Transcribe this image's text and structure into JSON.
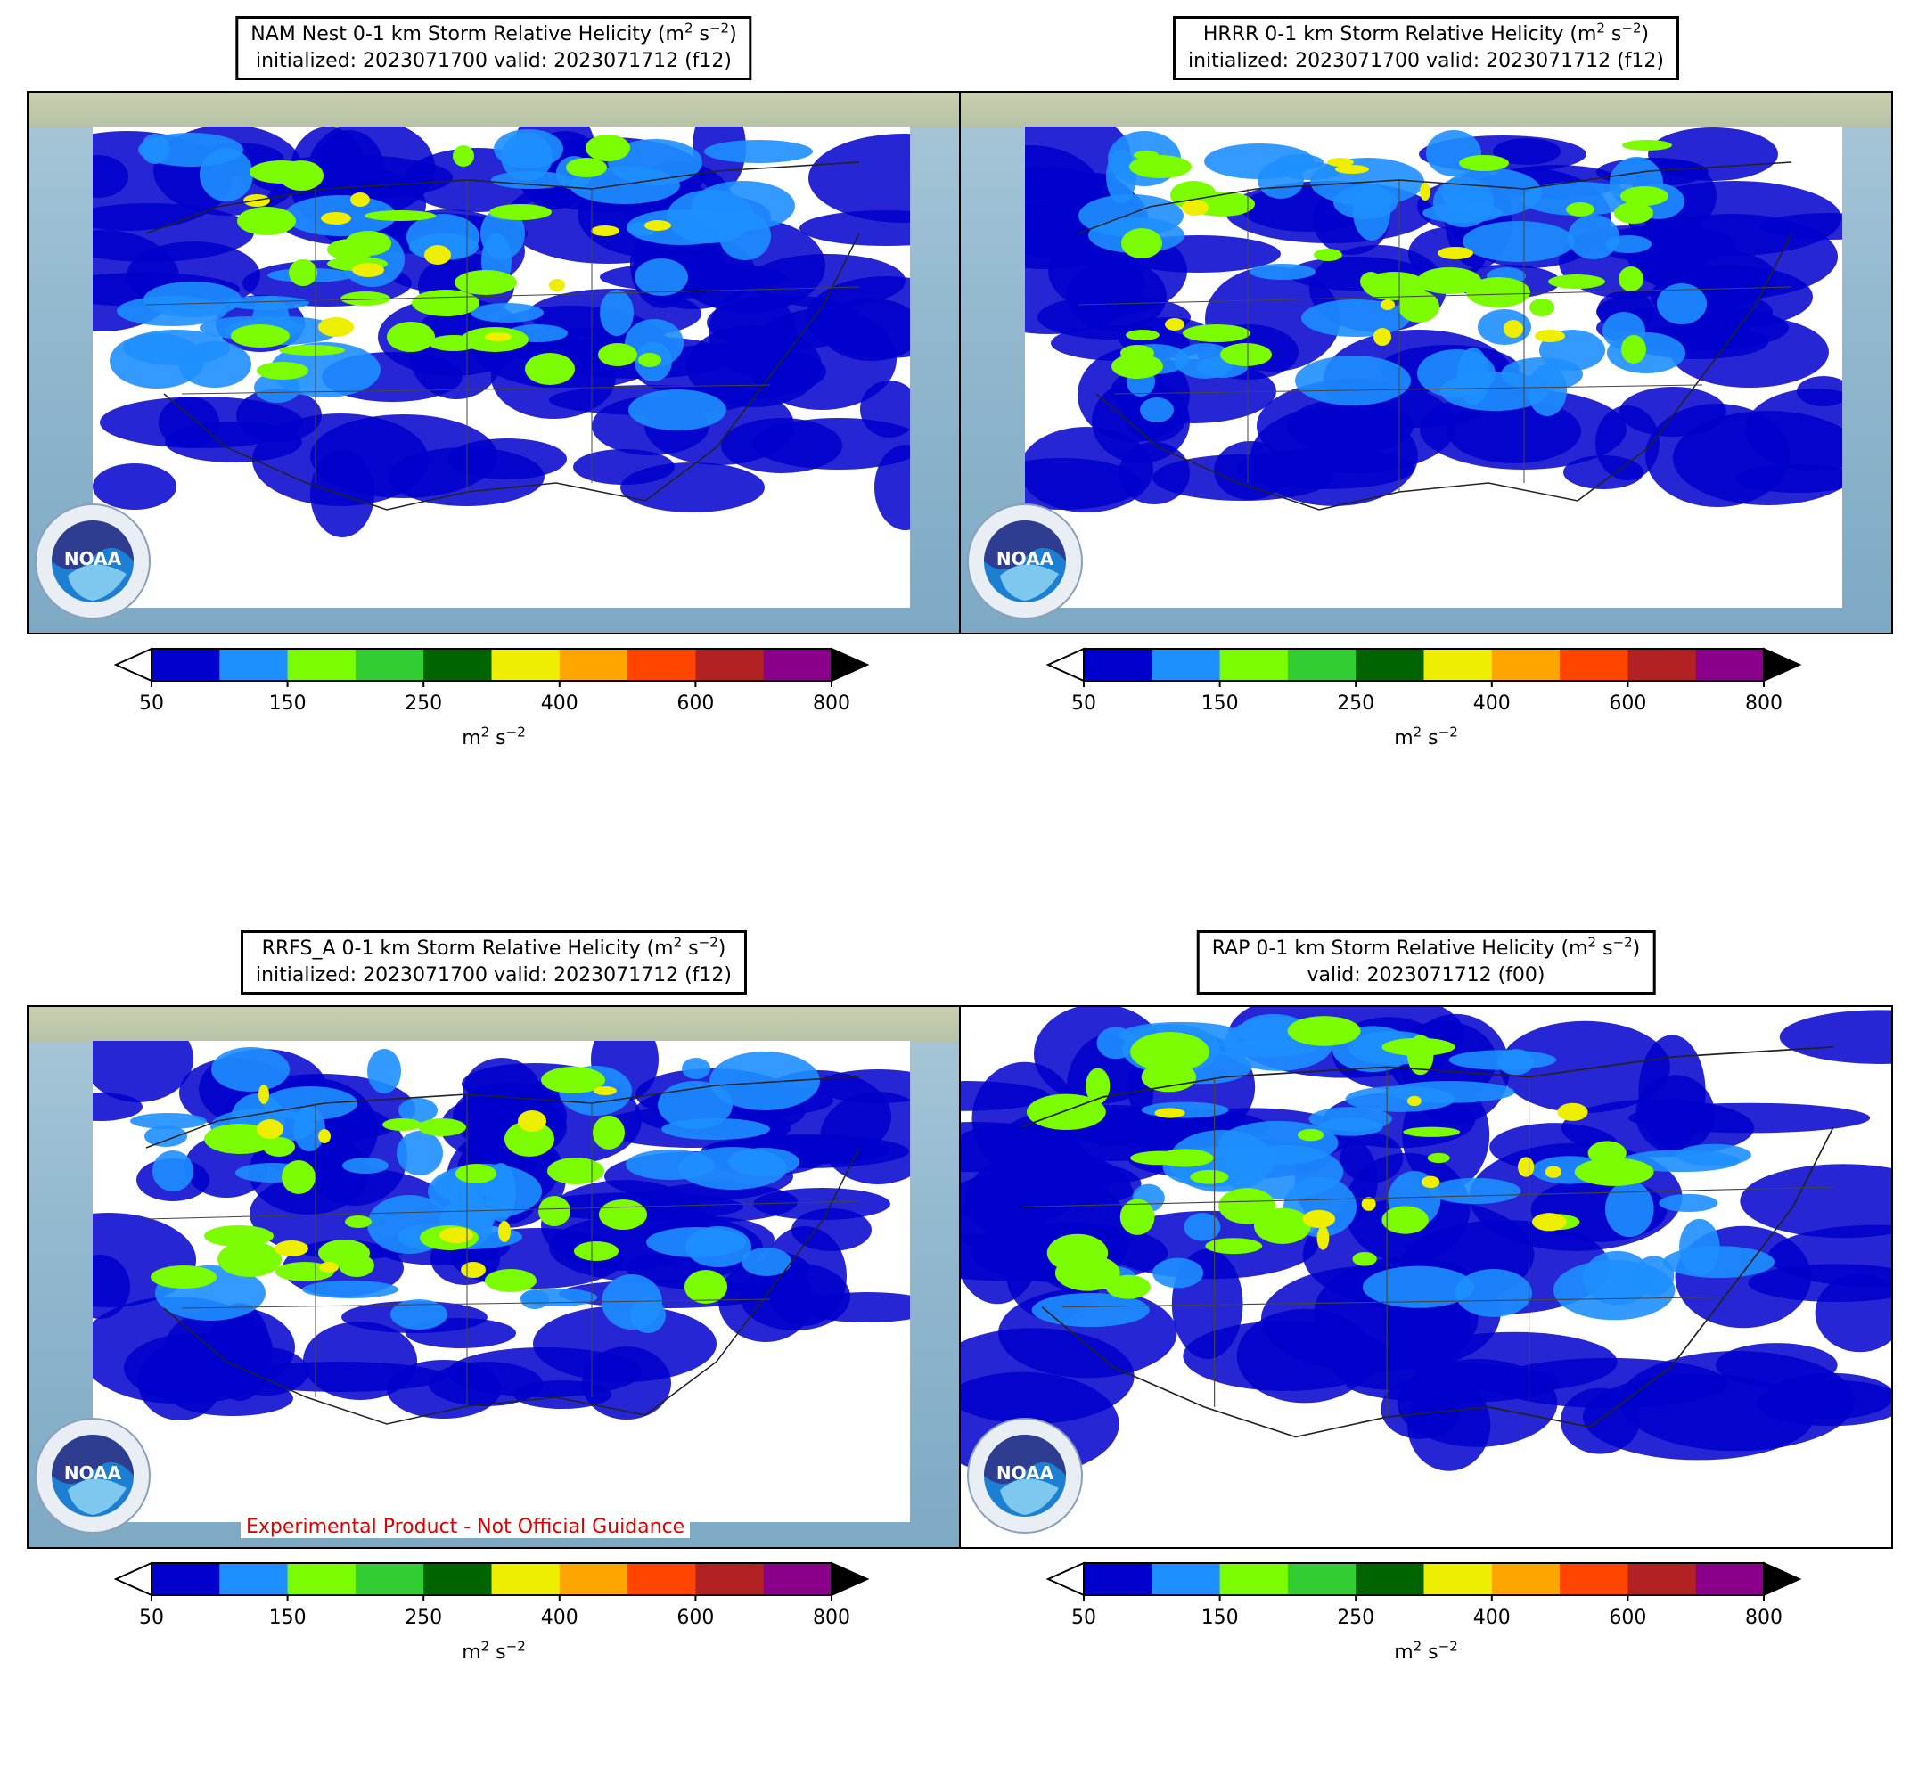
{
  "panels": [
    {
      "id": "nam",
      "title_line1_prefix": "NAM Nest 0-1 km Storm Relative Helicity (m",
      "title_line1_sup1": "2",
      "title_line1_mid": " s",
      "title_line1_sup2": "−2",
      "title_line1_suffix": ")",
      "title_line2": "initialized: 2023071700 valid: 2023071712 (f12)",
      "watermark": ""
    },
    {
      "id": "hrrr",
      "title_line1_prefix": "HRRR 0-1 km Storm Relative Helicity (m",
      "title_line1_sup1": "2",
      "title_line1_mid": " s",
      "title_line1_sup2": "−2",
      "title_line1_suffix": ")",
      "title_line2": "initialized: 2023071700 valid: 2023071712 (f12)",
      "watermark": ""
    },
    {
      "id": "rrfs",
      "title_line1_prefix": "RRFS_A 0-1 km Storm Relative Helicity (m",
      "title_line1_sup1": "2",
      "title_line1_mid": " s",
      "title_line1_sup2": "−2",
      "title_line1_suffix": ")",
      "title_line2": "initialized: 2023071700 valid: 2023071712 (f12)",
      "watermark": "Experimental Product - Not Official Guidance"
    },
    {
      "id": "rap",
      "title_line1_prefix": "RAP 0-1 km Storm Relative Helicity (m",
      "title_line1_sup1": "2",
      "title_line1_mid": " s",
      "title_line1_sup2": "−2",
      "title_line1_suffix": ")",
      "title_line2": "valid: 2023071712 (f00)",
      "watermark": ""
    }
  ],
  "colorbar": {
    "colors": [
      "#0000cd",
      "#1e8fff",
      "#7cfc00",
      "#32cd32",
      "#006400",
      "#eeee00",
      "#ffa500",
      "#ff4500",
      "#b22222",
      "#8b008b"
    ],
    "under_color": "#ffffff",
    "over_color": "#000000",
    "ticks": [
      "50",
      "150",
      "250",
      "400",
      "600",
      "800"
    ],
    "unit_prefix": "m",
    "unit_sup1": "2",
    "unit_mid": " s",
    "unit_sup2": "−2"
  },
  "logo": {
    "icon": "noaa-logo-icon",
    "text": "NOAA"
  }
}
